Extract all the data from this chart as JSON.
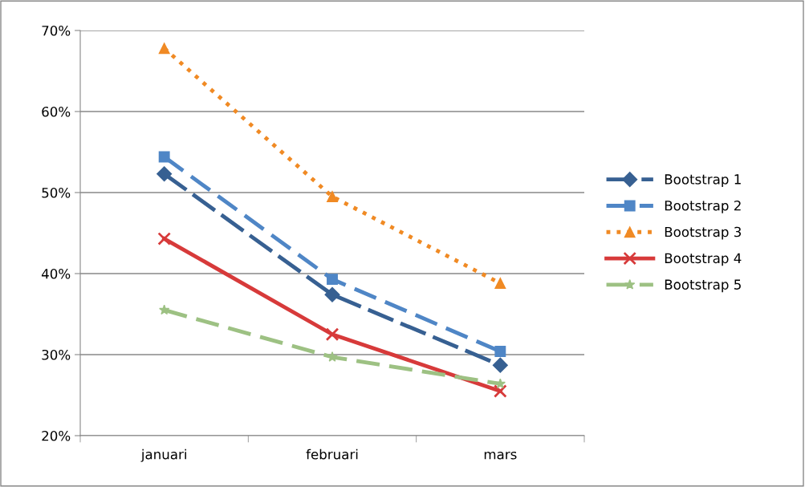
{
  "chart_data": {
    "type": "line",
    "categories": [
      "januari",
      "februari",
      "mars"
    ],
    "ylim": [
      20,
      70
    ],
    "yticks": [
      {
        "value": 20,
        "label": "20%"
      },
      {
        "value": 30,
        "label": "30%"
      },
      {
        "value": 40,
        "label": "40%"
      },
      {
        "value": 50,
        "label": "50%"
      },
      {
        "value": 60,
        "label": "60%"
      },
      {
        "value": 70,
        "label": "70%"
      }
    ],
    "grid": "y",
    "legend": "right",
    "series": [
      {
        "name": "Bootstrap 1",
        "color": "#376092",
        "values": [
          52.3,
          37.4,
          28.7
        ],
        "marker": "diamond",
        "line_style": "dashed"
      },
      {
        "name": "Bootstrap 2",
        "color": "#4f86c6",
        "values": [
          54.4,
          39.3,
          30.4
        ],
        "marker": "square",
        "line_style": "dashed"
      },
      {
        "name": "Bootstrap 3",
        "color": "#f08a24",
        "values": [
          67.8,
          49.5,
          38.8
        ],
        "marker": "triangle",
        "line_style": "dotted"
      },
      {
        "name": "Bootstrap 4",
        "color": "#d73a3a",
        "values": [
          44.3,
          32.5,
          25.5
        ],
        "marker": "cross",
        "line_style": "solid"
      },
      {
        "name": "Bootstrap 5",
        "color": "#9dc183",
        "values": [
          35.5,
          29.7,
          26.4
        ],
        "marker": "star",
        "line_style": "dashed"
      }
    ]
  }
}
